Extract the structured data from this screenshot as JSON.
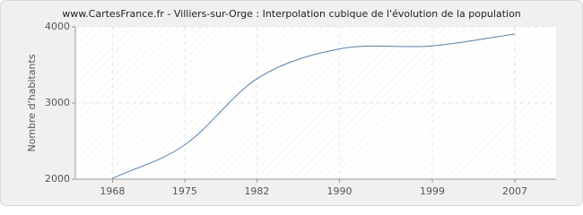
{
  "chart_data": {
    "type": "line",
    "title": "www.CartesFrance.fr - Villiers-sur-Orge : Interpolation cubique de l'évolution de la population",
    "y_label": "Nombre d'habitants",
    "x": [
      1968,
      1975,
      1982,
      1990,
      1999,
      2007
    ],
    "series": [
      {
        "name": "Population",
        "color": "#5580ab",
        "values": [
          2010,
          2450,
          3318,
          3710,
          3750,
          3906
        ]
      }
    ],
    "xlim": [
      1964.4,
      2011
    ],
    "xticks": [
      1968,
      1975,
      1982,
      1990,
      1999,
      2007
    ],
    "ylim": [
      2000,
      4000
    ],
    "yticks": [
      2000,
      3000,
      4000
    ],
    "grid": true
  }
}
